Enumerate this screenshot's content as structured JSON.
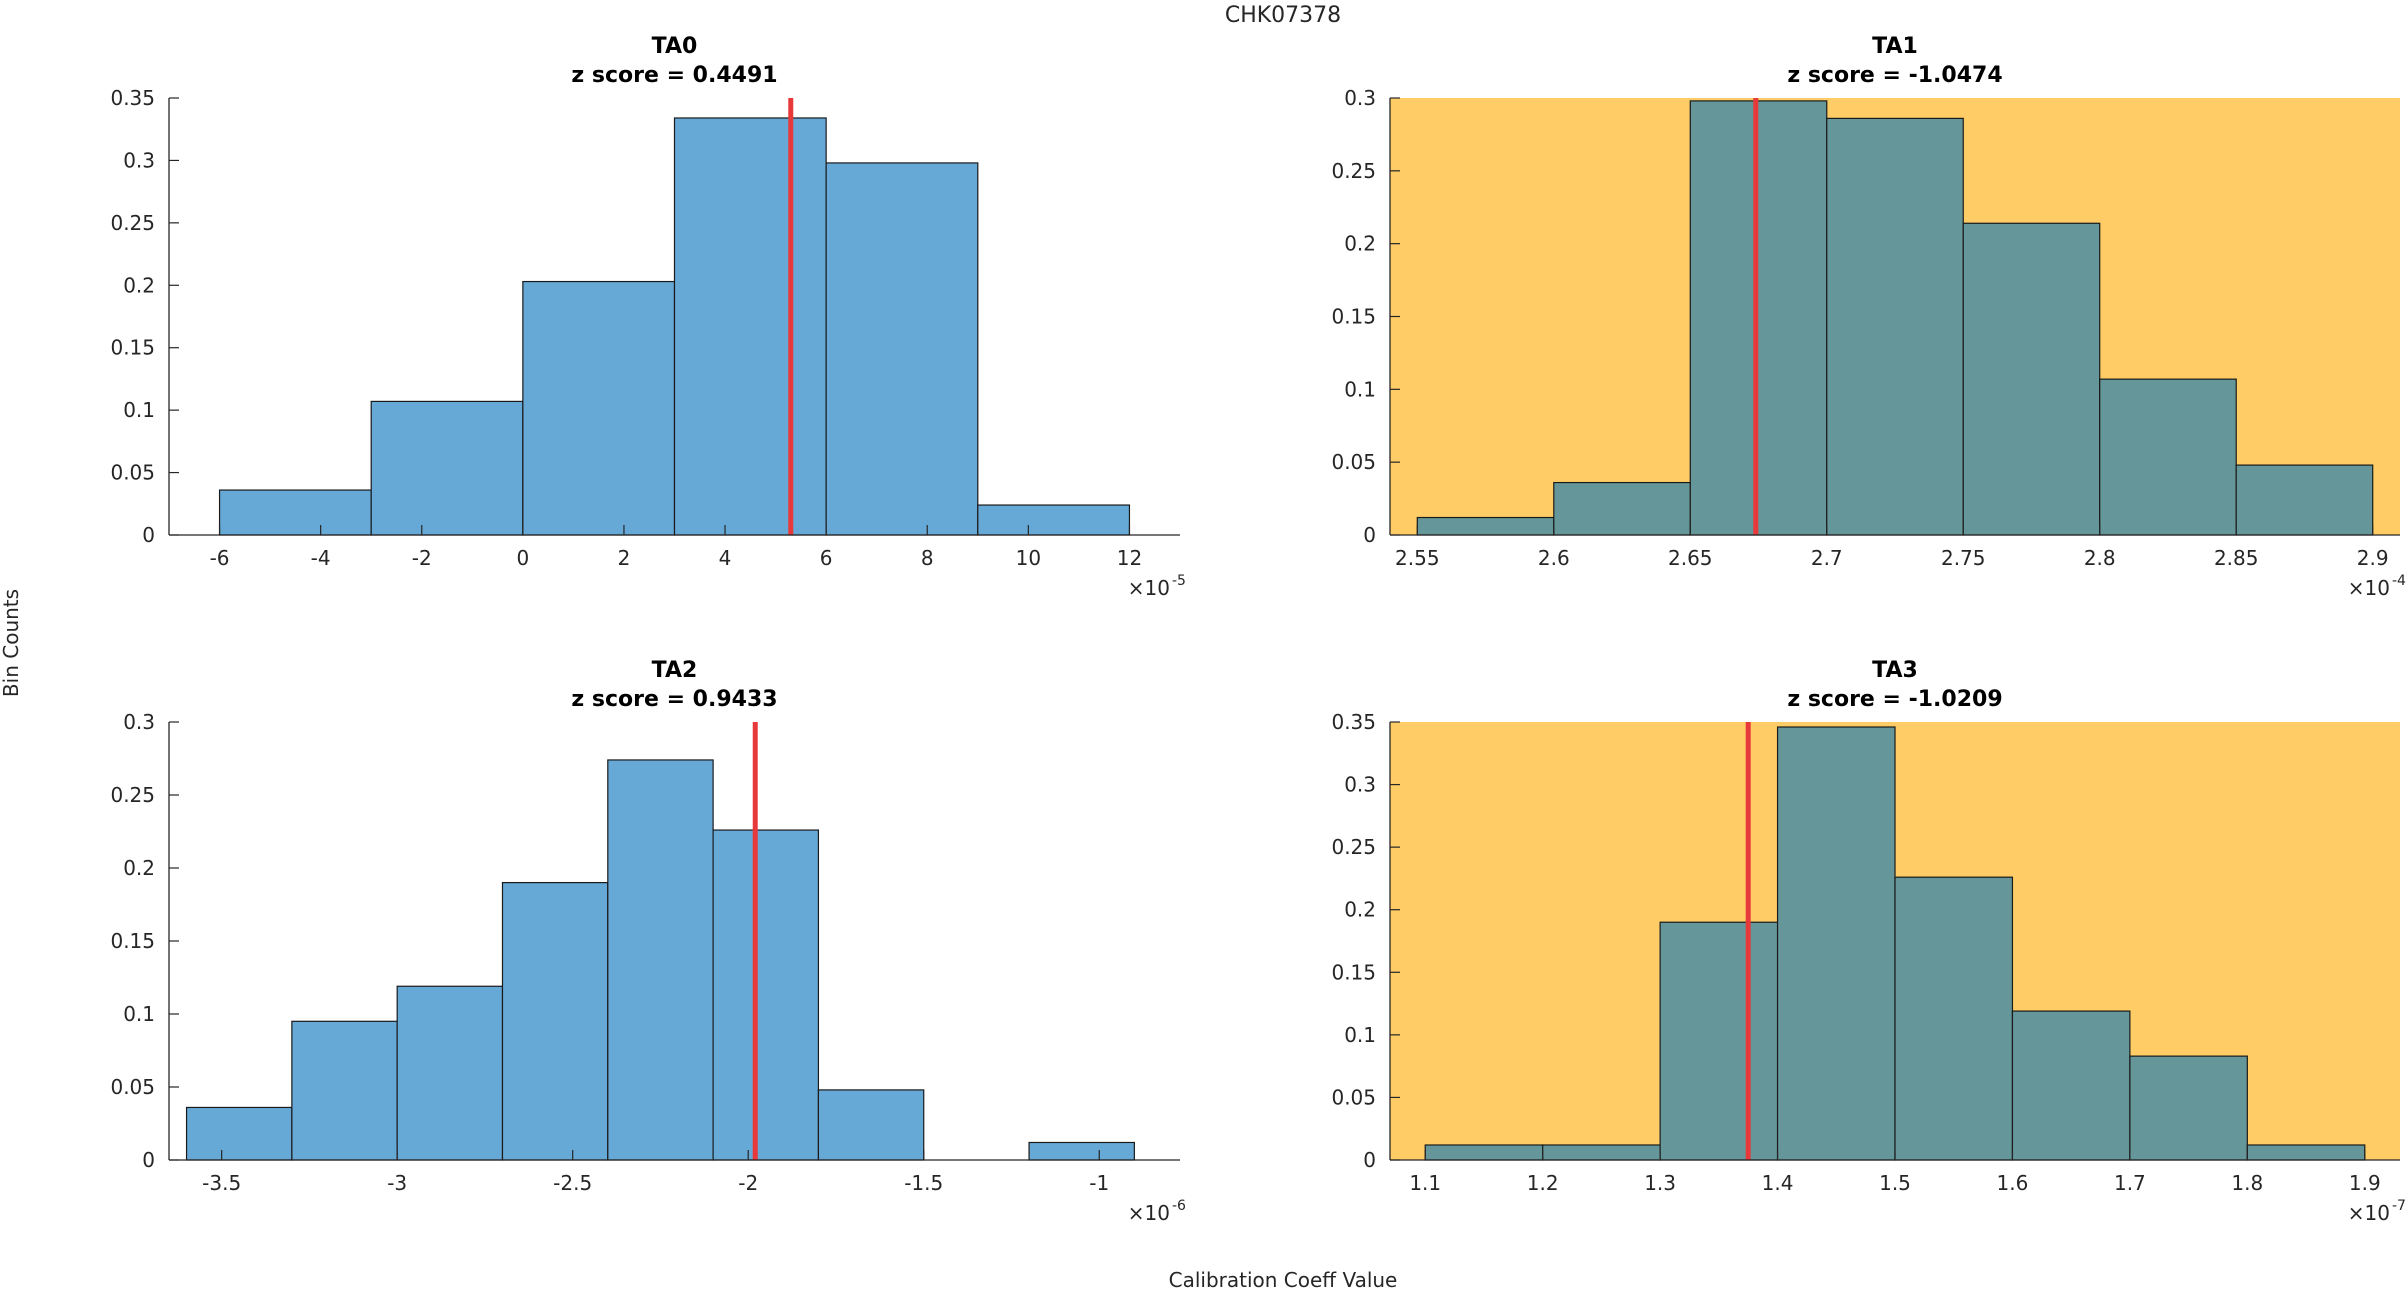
{
  "figure": {
    "title": "CHK07378",
    "xlabel": "Calibration Coeff Value",
    "ylabel": "Bin Counts"
  },
  "colors": {
    "normal_bar": "#66a9d7",
    "flagged_bar": "#65979a",
    "flagged_bg": "#ffcc66",
    "marker": "#e8393a",
    "axis": "#262626"
  },
  "chart_data": [
    {
      "type": "bar",
      "name": "TA0",
      "title": "TA0",
      "subtitle": "z score = 0.4491",
      "flagged": false,
      "exponent_label": "×10",
      "exponent": "-5",
      "bin_edges": [
        -6,
        -3,
        0,
        3,
        6,
        9,
        12
      ],
      "values": [
        0.036,
        0.107,
        0.203,
        0.334,
        0.298,
        0.024
      ],
      "marker_x": 5.3,
      "xlim": [
        -7,
        13
      ],
      "ylim": [
        0,
        0.35
      ],
      "xticks": [
        -6,
        -4,
        -2,
        0,
        2,
        4,
        6,
        8,
        10,
        12
      ],
      "xticklabels": [
        "-6",
        "-4",
        "-2",
        "0",
        "2",
        "4",
        "6",
        "8",
        "10",
        "12"
      ],
      "yticks": [
        0,
        0.05,
        0.1,
        0.15,
        0.2,
        0.25,
        0.3,
        0.35
      ],
      "yticklabels": [
        "0",
        "0.05",
        "0.1",
        "0.15",
        "0.2",
        "0.25",
        "0.3",
        "0.35"
      ]
    },
    {
      "type": "bar",
      "name": "TA1",
      "title": "TA1",
      "subtitle": "z score = -1.0474",
      "flagged": true,
      "exponent_label": "×10",
      "exponent": "-4",
      "bin_edges": [
        2.55,
        2.6,
        2.65,
        2.7,
        2.75,
        2.8,
        2.85,
        2.9
      ],
      "values": [
        0.012,
        0.036,
        0.298,
        0.286,
        0.214,
        0.107,
        0.048
      ],
      "marker_x": 2.674,
      "xlim": [
        2.54,
        2.91
      ],
      "ylim": [
        0,
        0.3
      ],
      "xticks": [
        2.55,
        2.6,
        2.65,
        2.7,
        2.75,
        2.8,
        2.85,
        2.9
      ],
      "xticklabels": [
        "2.55",
        "2.6",
        "2.65",
        "2.7",
        "2.75",
        "2.8",
        "2.85",
        "2.9"
      ],
      "yticks": [
        0,
        0.05,
        0.1,
        0.15,
        0.2,
        0.25,
        0.3
      ],
      "yticklabels": [
        "0",
        "0.05",
        "0.1",
        "0.15",
        "0.2",
        "0.25",
        "0.3"
      ]
    },
    {
      "type": "bar",
      "name": "TA2",
      "title": "TA2",
      "subtitle": "z score = 0.9433",
      "flagged": false,
      "exponent_label": "×10",
      "exponent": "-6",
      "bin_edges": [
        -3.6,
        -3.3,
        -3.0,
        -2.7,
        -2.4,
        -2.1,
        -1.8,
        -1.5,
        -1.2,
        -0.9
      ],
      "values": [
        0.036,
        0.095,
        0.119,
        0.19,
        0.274,
        0.226,
        0.048,
        0,
        0.012
      ],
      "marker_x": -1.98,
      "xlim": [
        -3.65,
        -0.77
      ],
      "ylim": [
        0,
        0.3
      ],
      "xticks": [
        -3.5,
        -3,
        -2.5,
        -2,
        -1.5,
        -1
      ],
      "xticklabels": [
        "-3.5",
        "-3",
        "-2.5",
        "-2",
        "-1.5",
        "-1"
      ],
      "yticks": [
        0,
        0.05,
        0.1,
        0.15,
        0.2,
        0.25,
        0.3
      ],
      "yticklabels": [
        "0",
        "0.05",
        "0.1",
        "0.15",
        "0.2",
        "0.25",
        "0.3"
      ]
    },
    {
      "type": "bar",
      "name": "TA3",
      "title": "TA3",
      "subtitle": "z score = -1.0209",
      "flagged": true,
      "exponent_label": "×10",
      "exponent": "-7",
      "bin_edges": [
        1.1,
        1.2,
        1.3,
        1.4,
        1.5,
        1.6,
        1.7,
        1.8,
        1.9
      ],
      "values": [
        0.012,
        0.012,
        0.19,
        0.346,
        0.226,
        0.119,
        0.083,
        0.012
      ],
      "marker_x": 1.375,
      "xlim": [
        1.07,
        1.93
      ],
      "ylim": [
        0,
        0.35
      ],
      "xticks": [
        1.1,
        1.2,
        1.3,
        1.4,
        1.5,
        1.6,
        1.7,
        1.8,
        1.9
      ],
      "xticklabels": [
        "1.1",
        "1.2",
        "1.3",
        "1.4",
        "1.5",
        "1.6",
        "1.7",
        "1.8",
        "1.9"
      ],
      "yticks": [
        0,
        0.05,
        0.1,
        0.15,
        0.2,
        0.25,
        0.3,
        0.35
      ],
      "yticklabels": [
        "0",
        "0.05",
        "0.1",
        "0.15",
        "0.2",
        "0.25",
        "0.3",
        "0.35"
      ]
    }
  ]
}
